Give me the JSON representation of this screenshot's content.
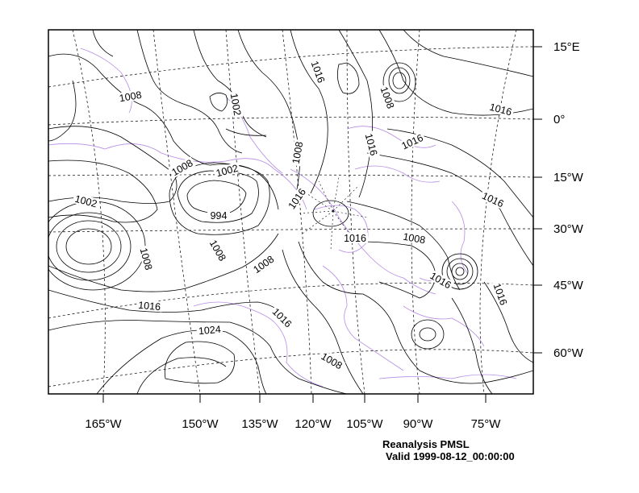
{
  "map": {
    "lon_labels": [
      "165°W",
      "150°W",
      "135°W",
      "120°W",
      "105°W",
      "90°W",
      "75°W"
    ],
    "lat_labels": [
      "15°E",
      "0°",
      "15°W",
      "30°W",
      "45°W",
      "60°W"
    ],
    "contour_labels": [
      "1008",
      "1002",
      "1016",
      "1008",
      "1016",
      "1016",
      "1008",
      "1016",
      "1008",
      "1002",
      "1016",
      "1002",
      "994",
      "1016",
      "1008",
      "1008",
      "1008",
      "1016",
      "1008",
      "1016",
      "1016",
      "1016",
      "1024",
      "1016"
    ],
    "colors": {
      "contour": "#000000",
      "coastline": "#b58ce6",
      "frame": "#000000",
      "background": "#ffffff"
    }
  },
  "caption": {
    "title": "Reanalysis PMSL",
    "valid": "Valid 1999-08-12_00:00:00"
  }
}
